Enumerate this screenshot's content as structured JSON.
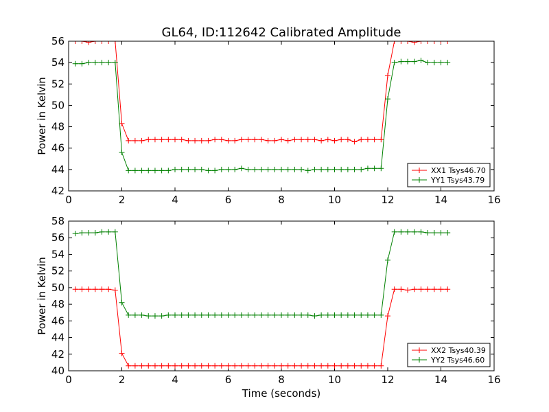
{
  "figure": {
    "title": "GL64, ID:112642 Calibrated Amplitude"
  },
  "colors": {
    "xx": "#ff0000",
    "yy": "#008000"
  },
  "chart_data": [
    {
      "type": "line",
      "title": "GL64, ID:112642 Calibrated Amplitude",
      "xlabel": "",
      "ylabel": "Power in Kelvin",
      "xlim": [
        0,
        16
      ],
      "ylim": [
        42,
        56
      ],
      "xticks": [
        "0",
        "2",
        "4",
        "6",
        "8",
        "10",
        "12",
        "14",
        "16"
      ],
      "yticks": [
        "42",
        "44",
        "46",
        "48",
        "50",
        "52",
        "54",
        "56"
      ],
      "grid": false,
      "legend_position": "lower-right",
      "x": [
        0.25,
        0.5,
        0.75,
        1.0,
        1.25,
        1.5,
        1.75,
        2.0,
        2.25,
        2.5,
        2.75,
        3.0,
        3.25,
        3.5,
        3.75,
        4.0,
        4.25,
        4.5,
        4.75,
        5.0,
        5.25,
        5.5,
        5.75,
        6.0,
        6.25,
        6.5,
        6.75,
        7.0,
        7.25,
        7.5,
        7.75,
        8.0,
        8.25,
        8.5,
        8.75,
        9.0,
        9.25,
        9.5,
        9.75,
        10.0,
        10.25,
        10.5,
        10.75,
        11.0,
        11.25,
        11.5,
        11.75,
        12.0,
        12.25,
        12.5,
        12.75,
        13.0,
        13.25,
        13.5,
        13.75,
        14.0,
        14.25
      ],
      "series": [
        {
          "name": "XX1 Tsys46.70",
          "color": "#ff0000",
          "values": [
            56.0,
            56.0,
            55.9,
            56.0,
            56.0,
            56.0,
            56.0,
            48.3,
            46.7,
            46.7,
            46.7,
            46.8,
            46.8,
            46.8,
            46.8,
            46.8,
            46.8,
            46.7,
            46.7,
            46.7,
            46.7,
            46.8,
            46.8,
            46.7,
            46.7,
            46.8,
            46.8,
            46.8,
            46.8,
            46.7,
            46.7,
            46.8,
            46.7,
            46.8,
            46.8,
            46.8,
            46.8,
            46.7,
            46.8,
            46.7,
            46.8,
            46.8,
            46.6,
            46.8,
            46.8,
            46.8,
            46.8,
            52.8,
            56.0,
            56.0,
            56.0,
            55.9,
            56.0,
            56.0,
            56.0,
            56.0,
            56.0
          ]
        },
        {
          "name": "YY1 Tsys43.79",
          "color": "#008000",
          "values": [
            53.9,
            53.9,
            54.0,
            54.0,
            54.0,
            54.0,
            54.0,
            45.6,
            43.9,
            43.9,
            43.9,
            43.9,
            43.9,
            43.9,
            43.9,
            44.0,
            44.0,
            44.0,
            44.0,
            44.0,
            43.9,
            43.9,
            44.0,
            44.0,
            44.0,
            44.1,
            44.0,
            44.0,
            44.0,
            44.0,
            44.0,
            44.0,
            44.0,
            44.0,
            44.0,
            43.9,
            44.0,
            44.0,
            44.0,
            44.0,
            44.0,
            44.0,
            44.0,
            44.0,
            44.1,
            44.1,
            44.1,
            50.6,
            54.0,
            54.1,
            54.1,
            54.1,
            54.2,
            54.0,
            54.0,
            54.0,
            54.0
          ]
        }
      ]
    },
    {
      "type": "line",
      "title": "",
      "xlabel": "Time (seconds)",
      "ylabel": "Power in Kelvin",
      "xlim": [
        0,
        16
      ],
      "ylim": [
        40,
        58
      ],
      "xticks": [
        "0",
        "2",
        "4",
        "6",
        "8",
        "10",
        "12",
        "14",
        "16"
      ],
      "yticks": [
        "40",
        "42",
        "44",
        "46",
        "48",
        "50",
        "52",
        "54",
        "56",
        "58"
      ],
      "grid": false,
      "legend_position": "lower-right",
      "x": [
        0.25,
        0.5,
        0.75,
        1.0,
        1.25,
        1.5,
        1.75,
        2.0,
        2.25,
        2.5,
        2.75,
        3.0,
        3.25,
        3.5,
        3.75,
        4.0,
        4.25,
        4.5,
        4.75,
        5.0,
        5.25,
        5.5,
        5.75,
        6.0,
        6.25,
        6.5,
        6.75,
        7.0,
        7.25,
        7.5,
        7.75,
        8.0,
        8.25,
        8.5,
        8.75,
        9.0,
        9.25,
        9.5,
        9.75,
        10.0,
        10.25,
        10.5,
        10.75,
        11.0,
        11.25,
        11.5,
        11.75,
        12.0,
        12.25,
        12.5,
        12.75,
        13.0,
        13.25,
        13.5,
        13.75,
        14.0,
        14.25
      ],
      "series": [
        {
          "name": "XX2 Tsys40.39",
          "color": "#ff0000",
          "values": [
            49.8,
            49.8,
            49.8,
            49.8,
            49.8,
            49.8,
            49.7,
            42.1,
            40.6,
            40.6,
            40.6,
            40.6,
            40.6,
            40.6,
            40.6,
            40.6,
            40.6,
            40.6,
            40.6,
            40.6,
            40.6,
            40.6,
            40.6,
            40.6,
            40.6,
            40.6,
            40.6,
            40.6,
            40.6,
            40.6,
            40.6,
            40.6,
            40.6,
            40.6,
            40.6,
            40.6,
            40.6,
            40.6,
            40.6,
            40.6,
            40.6,
            40.6,
            40.6,
            40.6,
            40.6,
            40.6,
            40.6,
            46.6,
            49.8,
            49.8,
            49.7,
            49.8,
            49.8,
            49.8,
            49.8,
            49.8,
            49.8
          ]
        },
        {
          "name": "YY2 Tsys46.60",
          "color": "#008000",
          "values": [
            56.5,
            56.6,
            56.6,
            56.6,
            56.7,
            56.7,
            56.7,
            48.2,
            46.7,
            46.7,
            46.7,
            46.6,
            46.6,
            46.6,
            46.7,
            46.7,
            46.7,
            46.7,
            46.7,
            46.7,
            46.7,
            46.7,
            46.7,
            46.7,
            46.7,
            46.7,
            46.7,
            46.7,
            46.7,
            46.7,
            46.7,
            46.7,
            46.7,
            46.7,
            46.7,
            46.7,
            46.6,
            46.7,
            46.7,
            46.7,
            46.7,
            46.7,
            46.7,
            46.7,
            46.7,
            46.7,
            46.7,
            53.3,
            56.7,
            56.7,
            56.7,
            56.7,
            56.7,
            56.6,
            56.6,
            56.6,
            56.6
          ]
        }
      ]
    }
  ]
}
